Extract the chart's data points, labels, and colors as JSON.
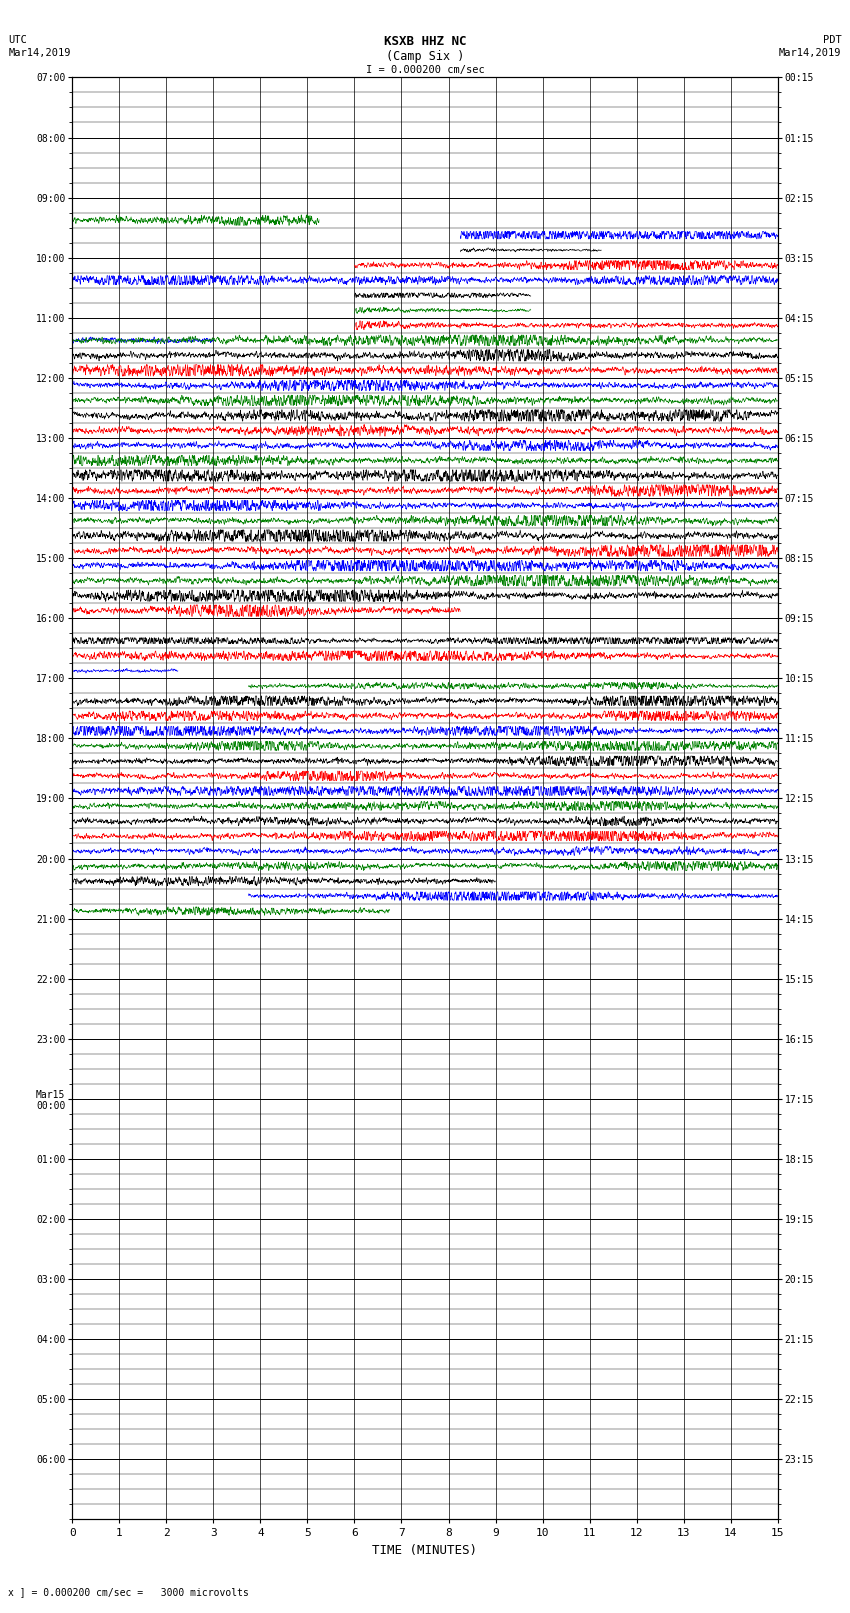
{
  "title_line1": "KSXB HHZ NC",
  "title_line2": "(Camp Six )",
  "scale_label": "I = 0.000200 cm/sec",
  "utc_label": "UTC",
  "utc_date": "Mar14,2019",
  "pdt_label": "PDT",
  "pdt_date": "Mar14,2019",
  "xlabel": "TIME (MINUTES)",
  "bottom_label": "x ] = 0.000200 cm/sec =   3000 microvolts",
  "num_rows": 96,
  "bg_color": "#ffffff",
  "grid_color": "#000000",
  "x_ticks": [
    0,
    1,
    2,
    3,
    4,
    5,
    6,
    7,
    8,
    9,
    10,
    11,
    12,
    13,
    14,
    15
  ],
  "left_times_major": {
    "0": "07:00",
    "4": "08:00",
    "8": "09:00",
    "12": "10:00",
    "16": "11:00",
    "20": "12:00",
    "24": "13:00",
    "28": "14:00",
    "32": "15:00",
    "36": "16:00",
    "40": "17:00",
    "44": "18:00",
    "48": "19:00",
    "52": "20:00",
    "56": "21:00",
    "60": "22:00",
    "64": "23:00",
    "68": "Mar15\n00:00",
    "72": "01:00",
    "76": "02:00",
    "80": "03:00",
    "84": "04:00",
    "88": "05:00",
    "92": "06:00"
  },
  "right_times_major": {
    "0": "00:15",
    "4": "01:15",
    "8": "02:15",
    "12": "03:15",
    "16": "04:15",
    "20": "05:15",
    "24": "06:15",
    "28": "07:15",
    "32": "08:15",
    "36": "09:15",
    "40": "10:15",
    "44": "11:15",
    "48": "12:15",
    "52": "13:15",
    "56": "14:15",
    "60": "15:15",
    "64": "16:15",
    "68": "17:15",
    "72": "18:15",
    "76": "19:15",
    "80": "20:15",
    "84": "21:15",
    "88": "22:15",
    "92": "23:15"
  },
  "traces": [
    {
      "row": 9,
      "color": "#008000",
      "amp": 0.35,
      "xstart": 0.0,
      "xend": 0.35
    },
    {
      "row": 10,
      "color": "#0000ff",
      "amp": 0.25,
      "xstart": 0.55,
      "xend": 1.0
    },
    {
      "row": 11,
      "color": "#000000",
      "amp": 0.15,
      "xstart": 0.55,
      "xend": 0.75
    },
    {
      "row": 12,
      "color": "#ff0000",
      "amp": 0.3,
      "xstart": 0.4,
      "xend": 1.0
    },
    {
      "row": 13,
      "color": "#0000ff",
      "amp": 0.3,
      "xstart": 0.0,
      "xend": 1.0
    },
    {
      "row": 14,
      "color": "#000000",
      "amp": 0.15,
      "xstart": 0.4,
      "xend": 0.65
    },
    {
      "row": 15,
      "color": "#008000",
      "amp": 0.2,
      "xstart": 0.4,
      "xend": 0.65
    },
    {
      "row": 16,
      "color": "#ff0000",
      "amp": 0.3,
      "xstart": 0.4,
      "xend": 1.0
    },
    {
      "row": 17,
      "color": "#0000ff",
      "amp": 0.3,
      "xstart": 0.0,
      "xend": 0.2
    },
    {
      "row": 17,
      "color": "#008000",
      "amp": 0.35,
      "xstart": 0.0,
      "xend": 1.0
    },
    {
      "row": 18,
      "color": "#000000",
      "amp": 0.38,
      "xstart": 0.0,
      "xend": 1.0
    },
    {
      "row": 19,
      "color": "#ff0000",
      "amp": 0.38,
      "xstart": 0.0,
      "xend": 1.0
    },
    {
      "row": 20,
      "color": "#0000ff",
      "amp": 0.35,
      "xstart": 0.0,
      "xend": 1.0
    },
    {
      "row": 21,
      "color": "#008000",
      "amp": 0.35,
      "xstart": 0.0,
      "xend": 1.0
    },
    {
      "row": 22,
      "color": "#000000",
      "amp": 0.38,
      "xstart": 0.0,
      "xend": 1.0
    },
    {
      "row": 23,
      "color": "#ff0000",
      "amp": 0.38,
      "xstart": 0.0,
      "xend": 1.0
    },
    {
      "row": 24,
      "color": "#0000ff",
      "amp": 0.35,
      "xstart": 0.0,
      "xend": 1.0
    },
    {
      "row": 25,
      "color": "#008000",
      "amp": 0.35,
      "xstart": 0.0,
      "xend": 1.0
    },
    {
      "row": 26,
      "color": "#000000",
      "amp": 0.38,
      "xstart": 0.0,
      "xend": 1.0
    },
    {
      "row": 27,
      "color": "#ff0000",
      "amp": 0.38,
      "xstart": 0.0,
      "xend": 1.0
    },
    {
      "row": 28,
      "color": "#0000ff",
      "amp": 0.35,
      "xstart": 0.0,
      "xend": 1.0
    },
    {
      "row": 29,
      "color": "#008000",
      "amp": 0.35,
      "xstart": 0.0,
      "xend": 1.0
    },
    {
      "row": 30,
      "color": "#000000",
      "amp": 0.38,
      "xstart": 0.0,
      "xend": 1.0
    },
    {
      "row": 31,
      "color": "#ff0000",
      "amp": 0.38,
      "xstart": 0.0,
      "xend": 1.0
    },
    {
      "row": 32,
      "color": "#0000ff",
      "amp": 0.35,
      "xstart": 0.0,
      "xend": 1.0
    },
    {
      "row": 33,
      "color": "#008000",
      "amp": 0.35,
      "xstart": 0.0,
      "xend": 1.0
    },
    {
      "row": 34,
      "color": "#000000",
      "amp": 0.38,
      "xstart": 0.0,
      "xend": 1.0
    },
    {
      "row": 35,
      "color": "#ff0000",
      "amp": 0.38,
      "xstart": 0.0,
      "xend": 0.55
    },
    {
      "row": 37,
      "color": "#000000",
      "amp": 0.2,
      "xstart": 0.0,
      "xend": 1.0
    },
    {
      "row": 38,
      "color": "#ff0000",
      "amp": 0.32,
      "xstart": 0.0,
      "xend": 1.0
    },
    {
      "row": 39,
      "color": "#0000ff",
      "amp": 0.18,
      "xstart": 0.0,
      "xend": 0.15
    },
    {
      "row": 40,
      "color": "#008000",
      "amp": 0.22,
      "xstart": 0.25,
      "xend": 1.0
    },
    {
      "row": 41,
      "color": "#000000",
      "amp": 0.32,
      "xstart": 0.0,
      "xend": 1.0
    },
    {
      "row": 42,
      "color": "#ff0000",
      "amp": 0.32,
      "xstart": 0.0,
      "xend": 1.0
    },
    {
      "row": 43,
      "color": "#0000ff",
      "amp": 0.3,
      "xstart": 0.0,
      "xend": 1.0
    },
    {
      "row": 44,
      "color": "#008000",
      "amp": 0.3,
      "xstart": 0.0,
      "xend": 1.0
    },
    {
      "row": 45,
      "color": "#000000",
      "amp": 0.32,
      "xstart": 0.0,
      "xend": 1.0
    },
    {
      "row": 46,
      "color": "#ff0000",
      "amp": 0.32,
      "xstart": 0.0,
      "xend": 1.0
    },
    {
      "row": 47,
      "color": "#0000ff",
      "amp": 0.3,
      "xstart": 0.0,
      "xend": 1.0
    },
    {
      "row": 48,
      "color": "#008000",
      "amp": 0.3,
      "xstart": 0.0,
      "xend": 1.0
    },
    {
      "row": 49,
      "color": "#000000",
      "amp": 0.32,
      "xstart": 0.0,
      "xend": 1.0
    },
    {
      "row": 50,
      "color": "#ff0000",
      "amp": 0.32,
      "xstart": 0.0,
      "xend": 1.0
    },
    {
      "row": 51,
      "color": "#0000ff",
      "amp": 0.3,
      "xstart": 0.0,
      "xend": 1.0
    },
    {
      "row": 52,
      "color": "#008000",
      "amp": 0.3,
      "xstart": 0.0,
      "xend": 1.0
    },
    {
      "row": 53,
      "color": "#000000",
      "amp": 0.32,
      "xstart": 0.0,
      "xend": 0.6
    },
    {
      "row": 54,
      "color": "#0000ff",
      "amp": 0.28,
      "xstart": 0.25,
      "xend": 1.0
    },
    {
      "row": 55,
      "color": "#008000",
      "amp": 0.28,
      "xstart": 0.0,
      "xend": 0.45
    }
  ]
}
